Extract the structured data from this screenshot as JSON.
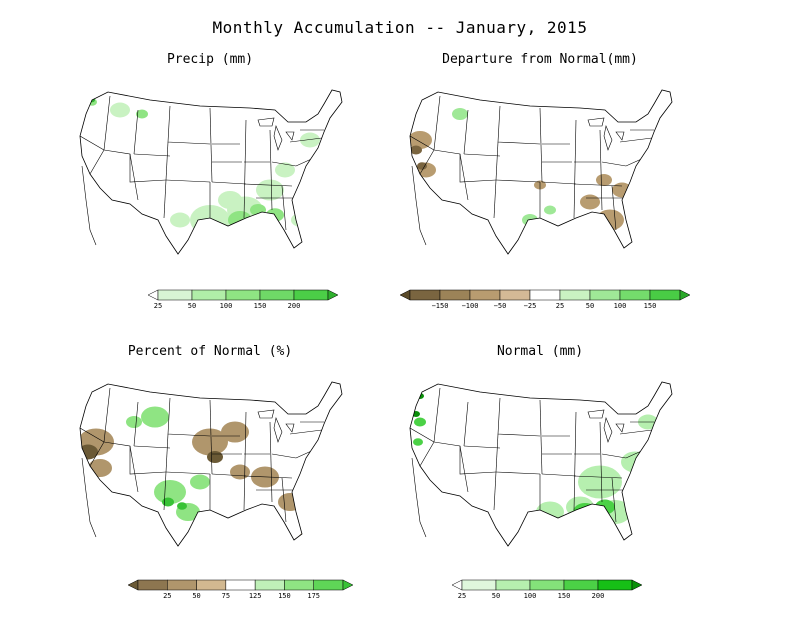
{
  "title": "Monthly Accumulation -- January, 2015",
  "panels": [
    {
      "title": "Precip (mm)",
      "legend": {
        "ticks": [
          "25",
          "50",
          "100",
          "150",
          "200"
        ],
        "colors": [
          "#ffffff",
          "#d8f5d4",
          "#b0eea8",
          "#8fe483",
          "#6fd967",
          "#4bce47",
          "#2fb02e"
        ]
      }
    },
    {
      "title": "Departure from Normal(mm)",
      "legend": {
        "ticks": [
          "−150",
          "−100",
          "−50",
          "−25",
          "25",
          "50",
          "100",
          "150"
        ],
        "colors": [
          "#5a4a2a",
          "#7a6540",
          "#9c8358",
          "#b89c70",
          "#d4b996",
          "#ffffff",
          "#c9f2c2",
          "#9fe897",
          "#74dc6c",
          "#49cc45",
          "#2aa82a"
        ]
      }
    },
    {
      "title": "Percent of Normal (%)",
      "legend": {
        "ticks": [
          "25",
          "50",
          "75",
          "125",
          "150",
          "175"
        ],
        "colors": [
          "#6b5a36",
          "#8d7650",
          "#b0966c",
          "#d2b890",
          "#ffffff",
          "#bff0b8",
          "#8fe483",
          "#5fd657",
          "#38c236"
        ]
      }
    },
    {
      "title": "Normal (mm)",
      "legend": {
        "ticks": [
          "25",
          "50",
          "100",
          "150",
          "200"
        ],
        "colors": [
          "#ffffff",
          "#dff7dc",
          "#b6efaf",
          "#84e27a",
          "#4bd146",
          "#16bf16",
          "#0a8f0a"
        ]
      }
    }
  ]
}
